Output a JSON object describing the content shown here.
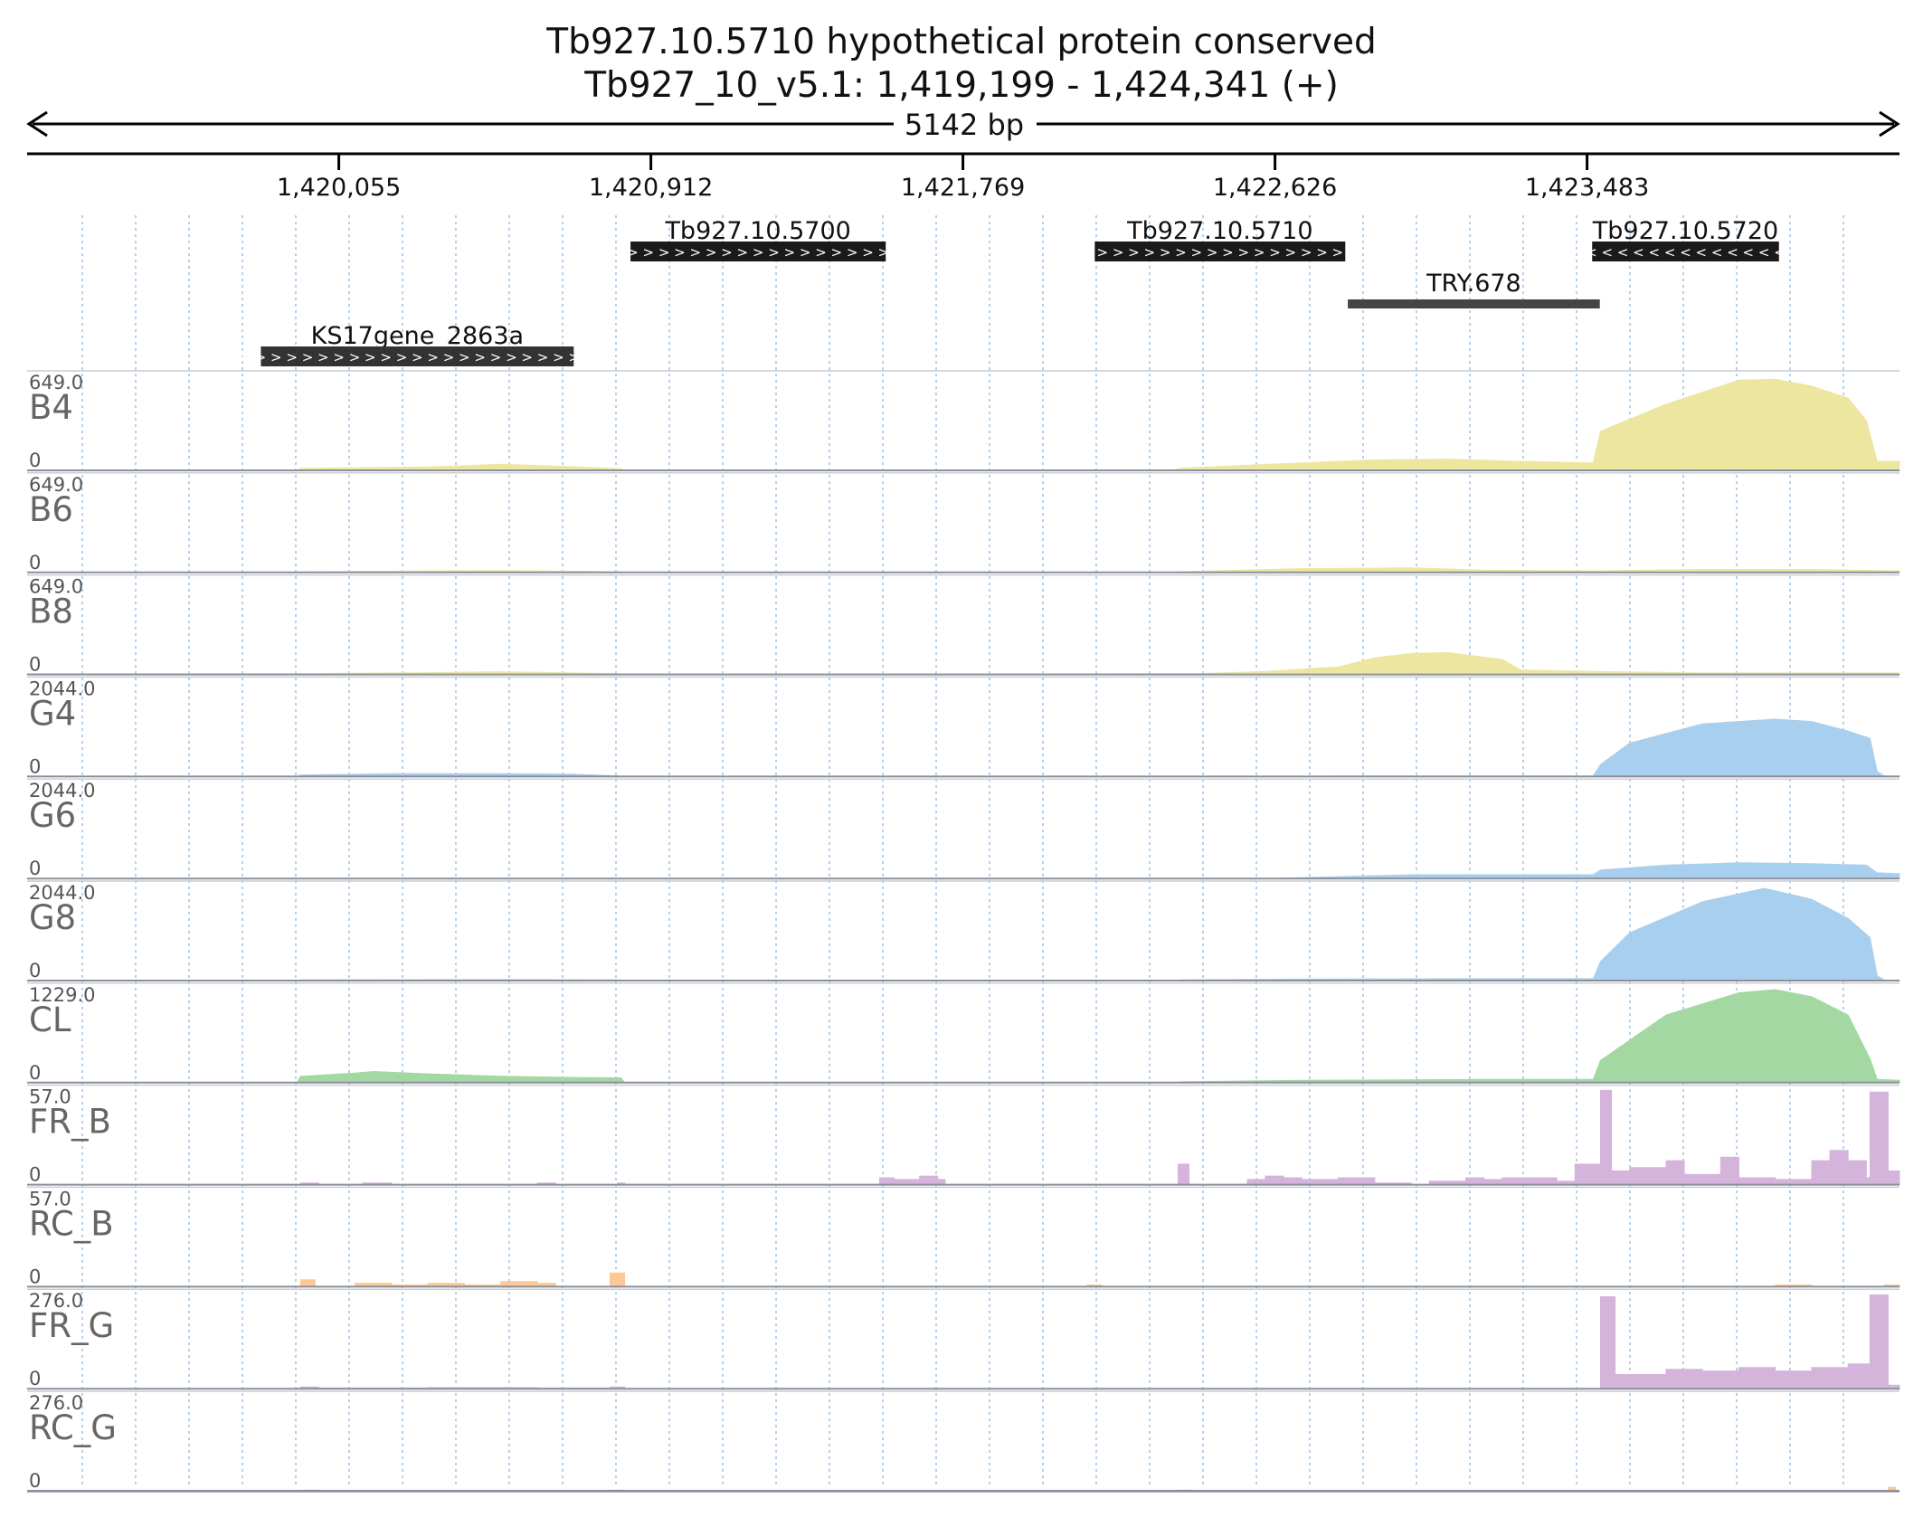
{
  "header": {
    "title": "Tb927.10.5710  hypothetical protein  conserved",
    "locus": "Tb927_10_v5.1: 1,419,199 - 1,424,341 (+)",
    "span_label": "5142 bp"
  },
  "chart_data": {
    "type": "area",
    "xlim": [
      1419199,
      1424341
    ],
    "ruler_ticks": [
      1420055,
      1420912,
      1421769,
      1422626,
      1423483
    ],
    "ruler_tick_labels": [
      "1,420,055",
      "1,420,912",
      "1,421,769",
      "1,422,626",
      "1,423,483"
    ],
    "features": [
      {
        "name": "Tb927.10.5700",
        "start": 1420856,
        "end": 1421557,
        "strand": "+",
        "row": 0,
        "style": "gene"
      },
      {
        "name": "Tb927.10.5710",
        "start": 1422131,
        "end": 1422819,
        "strand": "+",
        "row": 0,
        "style": "gene"
      },
      {
        "name": "Tb927.10.5720",
        "start": 1423497,
        "end": 1424010,
        "strand": "-",
        "row": 0,
        "style": "gene"
      },
      {
        "name": "TRY.678",
        "start": 1422826,
        "end": 1423518,
        "strand": "",
        "row": 1,
        "style": "plain"
      },
      {
        "name": "KS17gene_2863a",
        "start": 1419841,
        "end": 1420700,
        "strand": "+",
        "row": 2,
        "style": "gene"
      }
    ],
    "tracks": [
      {
        "name": "B4",
        "max_label": "649.0",
        "min_label": "0",
        "max": 649,
        "color": "#ede6a0",
        "kind": "smooth",
        "points": [
          [
            1419199,
            0
          ],
          [
            1419940,
            0
          ],
          [
            1419950,
            14
          ],
          [
            1420300,
            22
          ],
          [
            1420500,
            40
          ],
          [
            1420700,
            24
          ],
          [
            1420830,
            10
          ],
          [
            1420840,
            0
          ],
          [
            1421000,
            3
          ],
          [
            1421600,
            3
          ],
          [
            1422000,
            3
          ],
          [
            1422350,
            5
          ],
          [
            1422370,
            15
          ],
          [
            1422700,
            50
          ],
          [
            1422900,
            70
          ],
          [
            1423100,
            75
          ],
          [
            1423300,
            60
          ],
          [
            1423500,
            50
          ],
          [
            1423520,
            260
          ],
          [
            1423700,
            440
          ],
          [
            1423900,
            600
          ],
          [
            1424000,
            605
          ],
          [
            1424100,
            560
          ],
          [
            1424200,
            480
          ],
          [
            1424250,
            330
          ],
          [
            1424280,
            60
          ],
          [
            1424341,
            60
          ]
        ]
      },
      {
        "name": "B6",
        "max_label": "649.0",
        "min_label": "0",
        "max": 649,
        "color": "#ede6a0",
        "kind": "smooth",
        "points": [
          [
            1419199,
            0
          ],
          [
            1419940,
            0
          ],
          [
            1419950,
            4
          ],
          [
            1420300,
            10
          ],
          [
            1420500,
            12
          ],
          [
            1420830,
            5
          ],
          [
            1420840,
            0
          ],
          [
            1422350,
            0
          ],
          [
            1422370,
            5
          ],
          [
            1422700,
            25
          ],
          [
            1423000,
            30
          ],
          [
            1423200,
            15
          ],
          [
            1423500,
            10
          ],
          [
            1423800,
            20
          ],
          [
            1424100,
            20
          ],
          [
            1424341,
            10
          ]
        ]
      },
      {
        "name": "B8",
        "max_label": "649.0",
        "min_label": "0",
        "max": 649,
        "color": "#ede6a0",
        "kind": "smooth",
        "points": [
          [
            1419199,
            5
          ],
          [
            1419940,
            5
          ],
          [
            1419950,
            6
          ],
          [
            1420300,
            12
          ],
          [
            1420500,
            18
          ],
          [
            1420830,
            6
          ],
          [
            1420840,
            4
          ],
          [
            1422400,
            5
          ],
          [
            1422600,
            20
          ],
          [
            1422800,
            50
          ],
          [
            1422900,
            110
          ],
          [
            1423000,
            140
          ],
          [
            1423100,
            145
          ],
          [
            1423250,
            100
          ],
          [
            1423300,
            30
          ],
          [
            1423500,
            20
          ],
          [
            1423800,
            10
          ],
          [
            1424341,
            10
          ]
        ]
      },
      {
        "name": "G4",
        "max_label": "2044.0",
        "min_label": "0",
        "max": 2044,
        "color": "#a9cfee",
        "kind": "smooth",
        "points": [
          [
            1419199,
            0
          ],
          [
            1419940,
            0
          ],
          [
            1419950,
            30
          ],
          [
            1420200,
            60
          ],
          [
            1420500,
            60
          ],
          [
            1420700,
            50
          ],
          [
            1420830,
            10
          ],
          [
            1420840,
            0
          ],
          [
            1422626,
            0
          ],
          [
            1422800,
            10
          ],
          [
            1423200,
            10
          ],
          [
            1423500,
            10
          ],
          [
            1423520,
            250
          ],
          [
            1423600,
            700
          ],
          [
            1423800,
            1100
          ],
          [
            1424000,
            1200
          ],
          [
            1424100,
            1150
          ],
          [
            1424200,
            950
          ],
          [
            1424260,
            800
          ],
          [
            1424280,
            100
          ],
          [
            1424300,
            10
          ],
          [
            1424341,
            10
          ]
        ]
      },
      {
        "name": "G6",
        "max_label": "2044.0",
        "min_label": "0",
        "max": 2044,
        "color": "#a9cfee",
        "kind": "smooth",
        "points": [
          [
            1419199,
            0
          ],
          [
            1422600,
            0
          ],
          [
            1422800,
            40
          ],
          [
            1423000,
            80
          ],
          [
            1423300,
            80
          ],
          [
            1423500,
            80
          ],
          [
            1423520,
            180
          ],
          [
            1423700,
            280
          ],
          [
            1423900,
            330
          ],
          [
            1424100,
            310
          ],
          [
            1424250,
            280
          ],
          [
            1424280,
            120
          ],
          [
            1424341,
            100
          ]
        ]
      },
      {
        "name": "G8",
        "max_label": "2044.0",
        "min_label": "0",
        "max": 2044,
        "color": "#a9cfee",
        "kind": "smooth",
        "points": [
          [
            1419199,
            0
          ],
          [
            1419940,
            0
          ],
          [
            1419950,
            15
          ],
          [
            1420500,
            20
          ],
          [
            1420830,
            15
          ],
          [
            1420840,
            0
          ],
          [
            1422350,
            0
          ],
          [
            1422370,
            15
          ],
          [
            1422700,
            30
          ],
          [
            1423200,
            40
          ],
          [
            1423500,
            40
          ],
          [
            1423520,
            400
          ],
          [
            1423600,
            1000
          ],
          [
            1423800,
            1650
          ],
          [
            1423970,
            1930
          ],
          [
            1424100,
            1700
          ],
          [
            1424200,
            1300
          ],
          [
            1424260,
            900
          ],
          [
            1424280,
            100
          ],
          [
            1424300,
            10
          ],
          [
            1424341,
            10
          ]
        ]
      },
      {
        "name": "CL",
        "max_label": "1229.0",
        "min_label": "0",
        "max": 1229,
        "color": "#a4d8a2",
        "kind": "smooth",
        "points": [
          [
            1419199,
            0
          ],
          [
            1419940,
            0
          ],
          [
            1419950,
            80
          ],
          [
            1420100,
            120
          ],
          [
            1420150,
            140
          ],
          [
            1420300,
            110
          ],
          [
            1420500,
            80
          ],
          [
            1420700,
            65
          ],
          [
            1420830,
            60
          ],
          [
            1420840,
            0
          ],
          [
            1422350,
            0
          ],
          [
            1422370,
            10
          ],
          [
            1422700,
            30
          ],
          [
            1423200,
            40
          ],
          [
            1423500,
            40
          ],
          [
            1423520,
            280
          ],
          [
            1423700,
            850
          ],
          [
            1423900,
            1130
          ],
          [
            1424000,
            1170
          ],
          [
            1424100,
            1080
          ],
          [
            1424200,
            850
          ],
          [
            1424260,
            300
          ],
          [
            1424280,
            40
          ],
          [
            1424341,
            30
          ]
        ]
      },
      {
        "name": "FR_B",
        "max_label": "57.0",
        "min_label": "0",
        "max": 57,
        "color": "#d5b4dc",
        "kind": "step",
        "points": [
          [
            1419199,
            0
          ],
          [
            1419940,
            0
          ],
          [
            1419950,
            1
          ],
          [
            1420000,
            0
          ],
          [
            1420120,
            1
          ],
          [
            1420200,
            0
          ],
          [
            1420600,
            1
          ],
          [
            1420650,
            0
          ],
          [
            1420820,
            1
          ],
          [
            1420840,
            0
          ],
          [
            1421530,
            0
          ],
          [
            1421540,
            4
          ],
          [
            1421580,
            3
          ],
          [
            1421650,
            5
          ],
          [
            1421700,
            3
          ],
          [
            1421720,
            0
          ],
          [
            1422350,
            0
          ],
          [
            1422360,
            12
          ],
          [
            1422390,
            0
          ],
          [
            1422550,
            3
          ],
          [
            1422600,
            5
          ],
          [
            1422650,
            4
          ],
          [
            1422700,
            3
          ],
          [
            1422800,
            4
          ],
          [
            1422900,
            1
          ],
          [
            1423000,
            0
          ],
          [
            1423050,
            2
          ],
          [
            1423150,
            4
          ],
          [
            1423200,
            3
          ],
          [
            1423250,
            4
          ],
          [
            1423400,
            2
          ],
          [
            1423450,
            12
          ],
          [
            1423500,
            12
          ],
          [
            1423520,
            55
          ],
          [
            1423550,
            8
          ],
          [
            1423600,
            10
          ],
          [
            1423700,
            14
          ],
          [
            1423750,
            6
          ],
          [
            1423850,
            16
          ],
          [
            1423900,
            4
          ],
          [
            1424000,
            3
          ],
          [
            1424100,
            14
          ],
          [
            1424150,
            20
          ],
          [
            1424200,
            14
          ],
          [
            1424250,
            4
          ],
          [
            1424260,
            54
          ],
          [
            1424310,
            8
          ],
          [
            1424341,
            0
          ]
        ]
      },
      {
        "name": "RC_B",
        "max_label": "57.0",
        "min_label": "0",
        "max": 57,
        "color": "#fbc995",
        "kind": "step",
        "points": [
          [
            1419199,
            0
          ],
          [
            1419940,
            0
          ],
          [
            1419950,
            4
          ],
          [
            1419990,
            0
          ],
          [
            1420100,
            2
          ],
          [
            1420200,
            1
          ],
          [
            1420300,
            2
          ],
          [
            1420400,
            1
          ],
          [
            1420500,
            3
          ],
          [
            1420600,
            2
          ],
          [
            1420650,
            0
          ],
          [
            1420800,
            8
          ],
          [
            1420840,
            0
          ],
          [
            1422100,
            0
          ],
          [
            1422110,
            1
          ],
          [
            1422150,
            0
          ],
          [
            1423900,
            0
          ],
          [
            1424000,
            1
          ],
          [
            1424100,
            0
          ],
          [
            1424300,
            1
          ],
          [
            1424341,
            0
          ]
        ]
      },
      {
        "name": "FR_G",
        "max_label": "276.0",
        "min_label": "0",
        "max": 276,
        "color": "#d5b4dc",
        "kind": "step",
        "points": [
          [
            1419199,
            0
          ],
          [
            1419940,
            0
          ],
          [
            1419950,
            5
          ],
          [
            1420000,
            2
          ],
          [
            1420300,
            3
          ],
          [
            1420600,
            2
          ],
          [
            1420800,
            5
          ],
          [
            1420840,
            0
          ],
          [
            1423500,
            0
          ],
          [
            1423520,
            260
          ],
          [
            1423560,
            40
          ],
          [
            1423700,
            55
          ],
          [
            1423800,
            50
          ],
          [
            1423900,
            60
          ],
          [
            1424000,
            50
          ],
          [
            1424100,
            60
          ],
          [
            1424200,
            70
          ],
          [
            1424260,
            265
          ],
          [
            1424310,
            10
          ],
          [
            1424341,
            0
          ]
        ]
      },
      {
        "name": "RC_G",
        "max_label": "276.0",
        "min_label": "0",
        "max": 276,
        "color": "#fbc995",
        "kind": "step",
        "points": [
          [
            1419199,
            0
          ],
          [
            1419940,
            0
          ],
          [
            1419950,
            2
          ],
          [
            1420000,
            0
          ],
          [
            1420800,
            2
          ],
          [
            1420840,
            0
          ],
          [
            1422350,
            0
          ],
          [
            1422360,
            2
          ],
          [
            1422400,
            0
          ],
          [
            1424300,
            0
          ],
          [
            1424310,
            10
          ],
          [
            1424330,
            0
          ],
          [
            1424341,
            0
          ]
        ]
      }
    ]
  }
}
